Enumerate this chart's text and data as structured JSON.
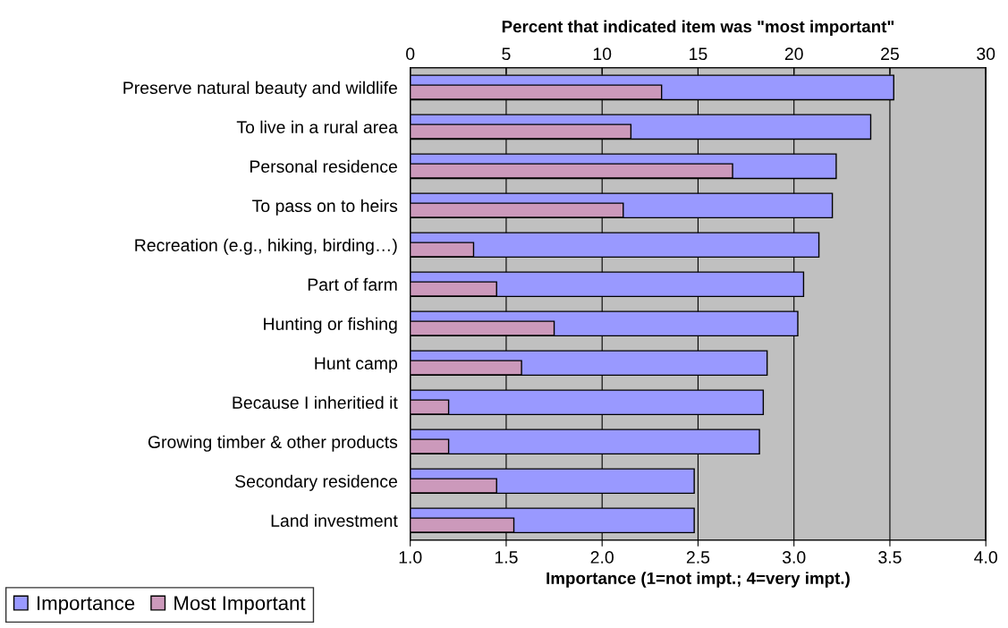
{
  "chart_data": {
    "type": "bar",
    "orientation": "horizontal",
    "categories": [
      "Preserve natural beauty and wildlife",
      "To live in a rural area",
      "Personal residence",
      "To pass on to heirs",
      "Recreation (e.g., hiking, birding…)",
      "Part of farm",
      "Hunting or fishing",
      "Hunt camp",
      "Because I inheritied it",
      "Growing timber & other products",
      "Secondary residence",
      "Land investment"
    ],
    "series": [
      {
        "name": "Importance",
        "color": "#9999ff",
        "values": [
          3.52,
          3.4,
          3.22,
          3.2,
          3.13,
          3.05,
          3.02,
          2.86,
          2.84,
          2.82,
          2.48,
          2.48
        ]
      },
      {
        "name": "Most Important",
        "color": "#cc99bb",
        "axis": "x2",
        "values": [
          13.1,
          11.5,
          16.8,
          11.1,
          3.3,
          4.5,
          7.5,
          5.8,
          2.0,
          2.0,
          4.5,
          5.4
        ]
      }
    ],
    "xlim": [
      1.0,
      4.0
    ],
    "xticks": [
      {
        "value": 1.0,
        "label": "1.0"
      },
      {
        "value": 1.5,
        "label": "1.5"
      },
      {
        "value": 2.0,
        "label": "2.0"
      },
      {
        "value": 2.5,
        "label": "2.5"
      },
      {
        "value": 3.0,
        "label": "3.0"
      },
      {
        "value": 3.5,
        "label": "3.5"
      },
      {
        "value": 4.0,
        "label": "4.0"
      }
    ],
    "xlabel": "Importance (1=not impt.; 4=very impt.)",
    "x2lim": [
      0,
      30
    ],
    "x2ticks": [
      0,
      5,
      10,
      15,
      20,
      25,
      30
    ],
    "x2label": "Percent that indicated item was \"most important\"",
    "grid": "x",
    "legend": "bottom left"
  }
}
